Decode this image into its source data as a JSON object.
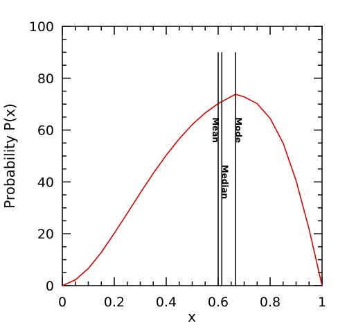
{
  "chart_data": {
    "type": "line",
    "xlabel": "x",
    "ylabel": "Probability P(x)",
    "xlim": [
      0,
      1
    ],
    "ylim": [
      0,
      100
    ],
    "xticks": [
      0,
      0.2,
      0.4,
      0.6,
      0.8,
      1
    ],
    "yticks": [
      0,
      20,
      40,
      60,
      80,
      100
    ],
    "xtick_labels": [
      "0",
      "0.2",
      "0.4",
      "0.6",
      "0.8",
      "1"
    ],
    "ytick_labels": [
      "0",
      "20",
      "40",
      "60",
      "80",
      "100"
    ],
    "grid": false,
    "series": [
      {
        "color": "#e00000",
        "x": [
          0,
          0.05,
          0.1,
          0.15,
          0.2,
          0.25,
          0.3,
          0.35,
          0.4,
          0.45,
          0.5,
          0.55,
          0.6,
          0.65,
          0.667,
          0.7,
          0.75,
          0.8,
          0.85,
          0.9,
          0.95,
          1
        ],
        "y": [
          0,
          2.2,
          6.6,
          12.8,
          20.2,
          27.9,
          35.7,
          43.3,
          50.3,
          56.6,
          62.1,
          66.6,
          70.2,
          72.9,
          73.8,
          72.8,
          70.2,
          64.5,
          55.0,
          40.5,
          21.8,
          0
        ]
      }
    ],
    "markers": [
      {
        "label": "Mean",
        "x": 0.6,
        "y_top": 90,
        "label_y": 60,
        "label_side": "left"
      },
      {
        "label": "Median",
        "x": 0.614,
        "y_top": 90,
        "label_y": 40,
        "label_side": "right"
      },
      {
        "label": "Mode",
        "x": 0.667,
        "y_top": 90,
        "label_y": 60,
        "label_side": "right"
      }
    ]
  }
}
